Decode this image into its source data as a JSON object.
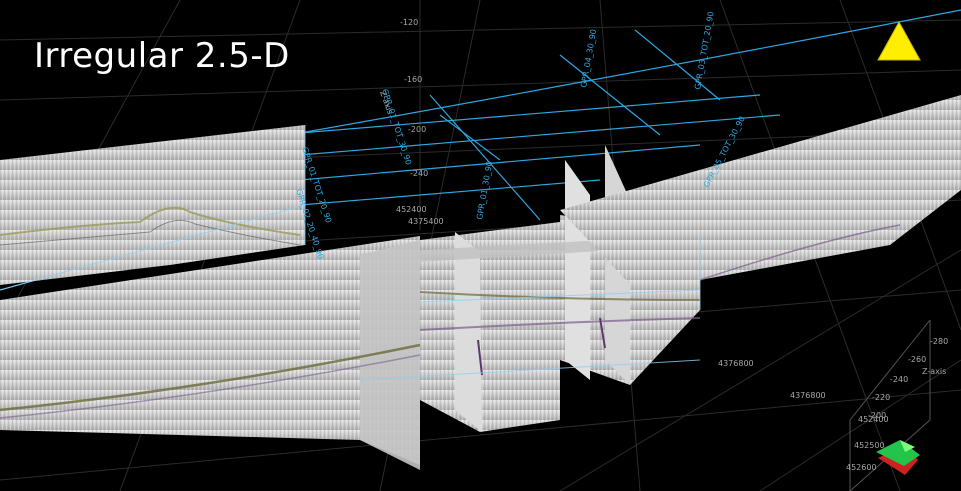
{
  "title": "Irregular 2.5-D",
  "colors": {
    "background": "#000000",
    "grid": "#2a2a2a",
    "profile_line": "#2ea7e0",
    "radar_panel": "#c9c9c9",
    "warning_triangle": "#ffee00"
  },
  "icons": {
    "warning": "warning-triangle-icon",
    "orientation": "axis-orientation-arrows-icon"
  },
  "z_axis": {
    "label": "Z-axis",
    "ticks": [
      "-120",
      "-160",
      "-200",
      "-240"
    ]
  },
  "z_axis_right": {
    "label": "Z-axis",
    "ticks": [
      "-200",
      "-220",
      "-240",
      "-260",
      "-280"
    ]
  },
  "y_axis_ticks": [
    "452400",
    "4375400"
  ],
  "x_axis_ticks": [
    "4376800",
    "4376800"
  ],
  "corner_ticks": [
    "452400",
    "452500",
    "452600"
  ],
  "profile_labels": [
    "GPR_01_TOT_20_90",
    "GPR_02_20_40_90",
    "GPR_01_TOT_30_90",
    "GPR_01_30_90",
    "GPR_04_30_90",
    "GPR_03_TOT_20_90",
    "GPR_05_TOT_30_90"
  ]
}
